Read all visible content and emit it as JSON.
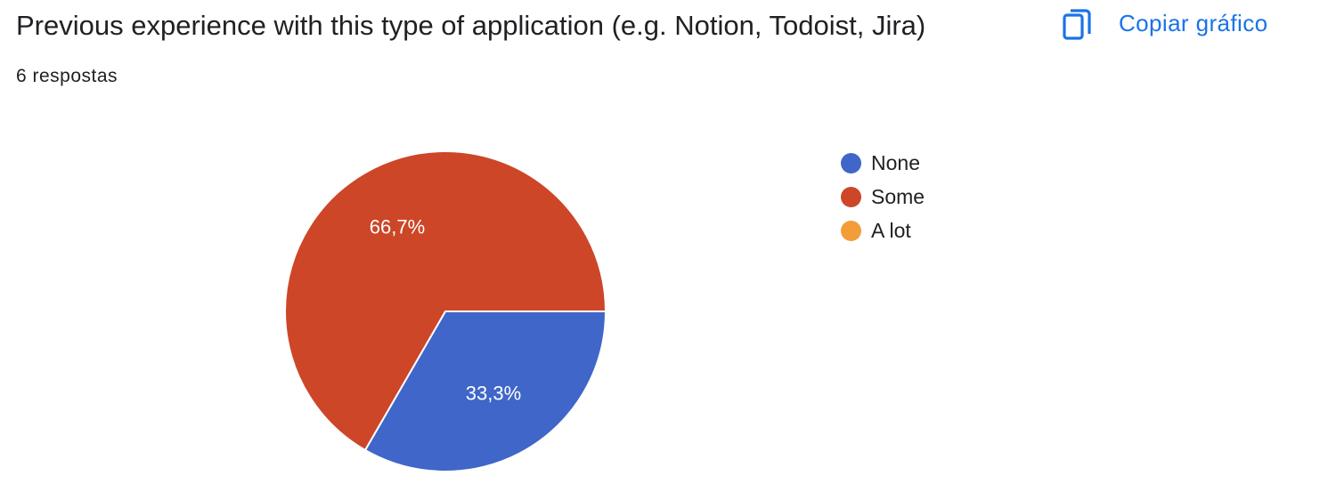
{
  "header": {
    "title": "Previous experience with this type of application (e.g. Notion, Todoist, Jira)",
    "response_count": "6 respostas",
    "copy_label": "Copiar gráfico",
    "copy_icon": "copy-icon"
  },
  "colors": {
    "accent": "#1a73e8"
  },
  "chart_data": {
    "type": "pie",
    "title": "Previous experience with this type of application (e.g. Notion, Todoist, Jira)",
    "legend_position": "right",
    "slices": [
      {
        "label": "None",
        "value": 2,
        "percent": 33.3,
        "percent_label": "33,3%",
        "color": "#3f66c8"
      },
      {
        "label": "Some",
        "value": 4,
        "percent": 66.7,
        "percent_label": "66,7%",
        "color": "#cc4627"
      },
      {
        "label": "A lot",
        "value": 0,
        "percent": 0,
        "percent_label": "",
        "color": "#f29d38"
      }
    ]
  }
}
